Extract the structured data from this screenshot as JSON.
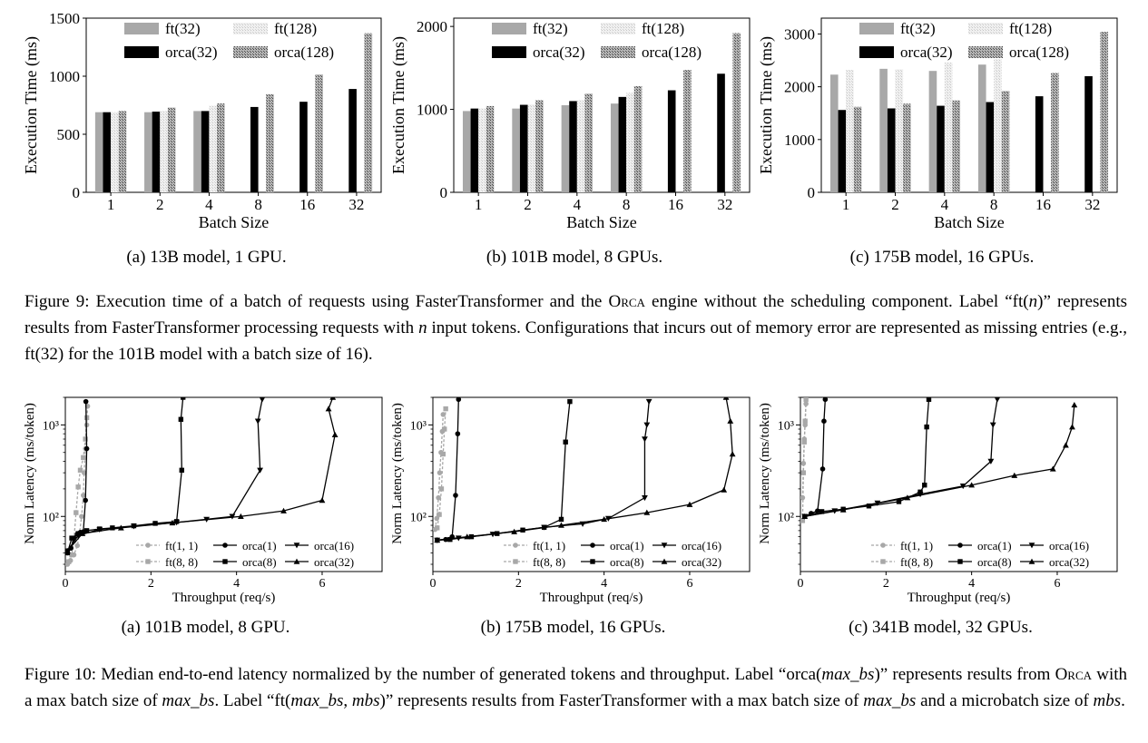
{
  "figure9": {
    "caption": {
      "s1": "Figure 9: Execution time of a batch of requests using FasterTransformer and the ",
      "orca": "Orca",
      "s2": " engine without the scheduling component. Label “ft(",
      "n": "n",
      "s3": ")” represents results from FasterTransformer processing requests with ",
      "n2": "n",
      "s4": " input tokens. Configurations that incurs out of memory error are represented as missing entries (e.g., ft(32) for the 101B model with a batch size of 16)."
    }
  },
  "figure10": {
    "caption": {
      "s1": "Figure 10: Median end-to-end latency normalized by the number of generated tokens and throughput. Label “orca(",
      "v1": "max_bs",
      "s2": ")” represents results from ",
      "orca": "Orca",
      "s3": " with a max batch size of ",
      "v2": "max_bs",
      "s4": ". Label “ft(",
      "v3": "max_bs",
      "s5": ", ",
      "v4": "mbs",
      "s6": ")” represents results from FasterTransformer with a max batch size of ",
      "v5": "max_bs",
      "s7": " and a microbatch size of ",
      "v6": "mbs",
      "s8": "."
    }
  },
  "colors": {
    "ft32": "#a8a8a8",
    "ft128": "#e2e2e2",
    "orca32": "#000000",
    "orca128": "#8c8c8c",
    "ft_line": "#a8a8a8",
    "orca_line": "#000000"
  },
  "chart_data": [
    {
      "type": "bar",
      "id": "fig9a",
      "subcaption": "(a) 13B model, 1 GPU.",
      "xlabel": "Batch Size",
      "ylabel": "Execution Time (ms)",
      "ylim": [
        0,
        1500
      ],
      "yticks": [
        0,
        500,
        1000,
        1500
      ],
      "categories": [
        "1",
        "2",
        "4",
        "8",
        "16",
        "32"
      ],
      "series": [
        {
          "name": "ft(32)",
          "key": "ft32",
          "values": [
            690,
            690,
            700,
            null,
            null,
            null
          ]
        },
        {
          "name": "orca(32)",
          "key": "orca32",
          "values": [
            690,
            695,
            700,
            735,
            780,
            890
          ]
        },
        {
          "name": "ft(128)",
          "key": "ft128",
          "values": [
            690,
            700,
            745,
            null,
            null,
            null
          ]
        },
        {
          "name": "orca(128)",
          "key": "orca128",
          "values": [
            700,
            730,
            765,
            845,
            1015,
            1370
          ]
        }
      ]
    },
    {
      "type": "bar",
      "id": "fig9b",
      "subcaption": "(b) 101B model, 8 GPUs.",
      "xlabel": "Batch Size",
      "ylabel": "Execution Time (ms)",
      "ylim": [
        0,
        2100
      ],
      "yticks": [
        0,
        1000,
        2000
      ],
      "categories": [
        "1",
        "2",
        "4",
        "8",
        "16",
        "32"
      ],
      "series": [
        {
          "name": "ft(32)",
          "key": "ft32",
          "values": [
            980,
            1010,
            1050,
            1070,
            null,
            null
          ]
        },
        {
          "name": "orca(32)",
          "key": "orca32",
          "values": [
            1010,
            1055,
            1100,
            1150,
            1230,
            1430
          ]
        },
        {
          "name": "ft(128)",
          "key": "ft128",
          "values": [
            1010,
            1060,
            1110,
            1200,
            null,
            null
          ]
        },
        {
          "name": "orca(128)",
          "key": "orca128",
          "values": [
            1040,
            1110,
            1190,
            1280,
            1475,
            1920
          ]
        }
      ]
    },
    {
      "type": "bar",
      "id": "fig9c",
      "subcaption": "(c) 175B model, 16 GPUs.",
      "xlabel": "Batch Size",
      "ylabel": "Execution Time (ms)",
      "ylim": [
        0,
        3300
      ],
      "yticks": [
        0,
        1000,
        2000,
        3000
      ],
      "categories": [
        "1",
        "2",
        "4",
        "8",
        "16",
        "32"
      ],
      "series": [
        {
          "name": "ft(32)",
          "key": "ft32",
          "values": [
            2230,
            2340,
            2300,
            2420,
            null,
            null
          ]
        },
        {
          "name": "orca(32)",
          "key": "orca32",
          "values": [
            1560,
            1590,
            1640,
            1710,
            1820,
            2200
          ]
        },
        {
          "name": "ft(128)",
          "key": "ft128",
          "values": [
            2320,
            2330,
            2460,
            2520,
            null,
            null
          ]
        },
        {
          "name": "orca(128)",
          "key": "orca128",
          "values": [
            1620,
            1680,
            1740,
            1920,
            2260,
            3040
          ]
        }
      ]
    },
    {
      "type": "line",
      "id": "fig10a",
      "subcaption": "(a) 101B model, 8 GPU.",
      "xlabel": "Throughput (req/s)",
      "ylabel": "Norm Latency (ms/token)",
      "yscale": "log",
      "xlim": [
        0,
        7.4
      ],
      "ylim": [
        25,
        2000
      ],
      "xticks": [
        0,
        2,
        4,
        6
      ],
      "yticks": [
        {
          "value": 100,
          "label": "10²"
        },
        {
          "value": 1000,
          "label": "10³"
        }
      ],
      "series": [
        {
          "name": "ft(1, 1)",
          "style": "ft",
          "marker": "circle",
          "points": [
            [
              0.05,
              30
            ],
            [
              0.12,
              33
            ],
            [
              0.2,
              38
            ],
            [
              0.28,
              48
            ],
            [
              0.33,
              65
            ],
            [
              0.38,
              100
            ],
            [
              0.42,
              170
            ],
            [
              0.44,
              300
            ],
            [
              0.47,
              550
            ],
            [
              0.5,
              1000
            ],
            [
              0.52,
              1600
            ]
          ]
        },
        {
          "name": "ft(8, 8)",
          "style": "ft",
          "marker": "square",
          "points": [
            [
              0.08,
              32
            ],
            [
              0.15,
              38
            ],
            [
              0.2,
              55
            ],
            [
              0.25,
              110
            ],
            [
              0.3,
              210
            ],
            [
              0.35,
              320
            ],
            [
              0.42,
              440
            ],
            [
              0.47,
              700
            ],
            [
              0.5,
              1200
            ]
          ]
        },
        {
          "name": "orca(1)",
          "style": "orca",
          "marker": "circle",
          "points": [
            [
              0.05,
              40
            ],
            [
              0.13,
              45
            ],
            [
              0.2,
              58
            ],
            [
              0.28,
              64
            ],
            [
              0.35,
              67
            ],
            [
              0.42,
              68
            ],
            [
              0.47,
              150
            ],
            [
              0.5,
              550
            ],
            [
              0.48,
              1800
            ]
          ]
        },
        {
          "name": "orca(8)",
          "style": "orca",
          "marker": "square",
          "points": [
            [
              0.05,
              40
            ],
            [
              0.15,
              58
            ],
            [
              0.3,
              65
            ],
            [
              0.5,
              70
            ],
            [
              0.8,
              73
            ],
            [
              1.1,
              75
            ],
            [
              1.6,
              79
            ],
            [
              2.1,
              84
            ],
            [
              2.6,
              88
            ],
            [
              2.72,
              320
            ],
            [
              2.7,
              1150
            ],
            [
              2.75,
              2000
            ]
          ]
        },
        {
          "name": "orca(16)",
          "style": "orca",
          "marker": "tri-down",
          "points": [
            [
              0.05,
              42
            ],
            [
              0.3,
              62
            ],
            [
              0.8,
              72
            ],
            [
              1.6,
              78
            ],
            [
              2.6,
              86
            ],
            [
              3.3,
              93
            ],
            [
              3.9,
              100
            ],
            [
              4.55,
              320
            ],
            [
              4.5,
              1100
            ],
            [
              4.6,
              1900
            ]
          ]
        },
        {
          "name": "orca(32)",
          "style": "orca",
          "marker": "tri-up",
          "points": [
            [
              0.05,
              42
            ],
            [
              0.4,
              65
            ],
            [
              1.3,
              75
            ],
            [
              2.5,
              85
            ],
            [
              4.1,
              100
            ],
            [
              5.1,
              115
            ],
            [
              6.0,
              150
            ],
            [
              6.3,
              780
            ],
            [
              6.15,
              1500
            ],
            [
              6.25,
              2000
            ]
          ]
        }
      ],
      "legend": "lower-right"
    },
    {
      "type": "line",
      "id": "fig10b",
      "subcaption": "(b) 175B model, 16 GPUs.",
      "xlabel": "Throughput (req/s)",
      "ylabel": "Norm Latency (ms/token)",
      "yscale": "log",
      "xlim": [
        0,
        7.4
      ],
      "ylim": [
        25,
        2000
      ],
      "xticks": [
        0,
        2,
        4,
        6
      ],
      "yticks": [
        {
          "value": 100,
          "label": "10²"
        },
        {
          "value": 1000,
          "label": "10³"
        }
      ],
      "series": [
        {
          "name": "ft(1, 1)",
          "style": "ft",
          "marker": "circle",
          "points": [
            [
              0.05,
              72
            ],
            [
              0.09,
              95
            ],
            [
              0.13,
              160
            ],
            [
              0.16,
              300
            ],
            [
              0.19,
              500
            ],
            [
              0.22,
              850
            ],
            [
              0.24,
              1300
            ]
          ]
        },
        {
          "name": "ft(8, 8)",
          "style": "ft",
          "marker": "square",
          "points": [
            [
              0.1,
              75
            ],
            [
              0.15,
              105
            ],
            [
              0.2,
              200
            ],
            [
              0.24,
              480
            ],
            [
              0.27,
              900
            ],
            [
              0.3,
              1500
            ]
          ]
        },
        {
          "name": "orca(1)",
          "style": "orca",
          "marker": "circle",
          "points": [
            [
              0.1,
              55
            ],
            [
              0.3,
              56
            ],
            [
              0.45,
              60
            ],
            [
              0.53,
              170
            ],
            [
              0.58,
              800
            ],
            [
              0.6,
              1900
            ]
          ]
        },
        {
          "name": "orca(8)",
          "style": "orca",
          "marker": "square",
          "points": [
            [
              0.1,
              55
            ],
            [
              0.4,
              56
            ],
            [
              0.9,
              60
            ],
            [
              1.5,
              65
            ],
            [
              2.1,
              71
            ],
            [
              2.6,
              76
            ],
            [
              3.0,
              93
            ],
            [
              3.1,
              650
            ],
            [
              3.2,
              1800
            ]
          ]
        },
        {
          "name": "orca(16)",
          "style": "orca",
          "marker": "tri-down",
          "points": [
            [
              0.1,
              55
            ],
            [
              0.6,
              58
            ],
            [
              1.4,
              64
            ],
            [
              2.6,
              76
            ],
            [
              3.5,
              83
            ],
            [
              4.1,
              95
            ],
            [
              4.95,
              160
            ],
            [
              4.95,
              700
            ],
            [
              5.0,
              1000
            ],
            [
              5.05,
              1800
            ]
          ]
        },
        {
          "name": "orca(32)",
          "style": "orca",
          "marker": "tri-up",
          "points": [
            [
              0.1,
              55
            ],
            [
              0.8,
              60
            ],
            [
              1.9,
              68
            ],
            [
              3.0,
              80
            ],
            [
              4.0,
              93
            ],
            [
              5.0,
              110
            ],
            [
              6.0,
              135
            ],
            [
              6.8,
              195
            ],
            [
              7.0,
              480
            ],
            [
              6.95,
              1100
            ],
            [
              6.85,
              2000
            ]
          ]
        }
      ],
      "legend": "lower-right"
    },
    {
      "type": "line",
      "id": "fig10c",
      "subcaption": "(c) 341B model, 32 GPUs.",
      "xlabel": "Throughput (req/s)",
      "ylabel": "Norm Latency (ms/token)",
      "yscale": "log",
      "xlim": [
        0,
        7.4
      ],
      "ylim": [
        25,
        2000
      ],
      "xticks": [
        0,
        2,
        4,
        6
      ],
      "yticks": [
        {
          "value": 100,
          "label": "10²"
        },
        {
          "value": 1000,
          "label": "10³"
        }
      ],
      "series": [
        {
          "name": "ft(1, 1)",
          "style": "ft",
          "marker": "circle",
          "points": [
            [
              0.05,
              160
            ],
            [
              0.07,
              380
            ],
            [
              0.09,
              700
            ],
            [
              0.11,
              1000
            ],
            [
              0.13,
              1700
            ]
          ]
        },
        {
          "name": "ft(8, 8)",
          "style": "ft",
          "marker": "square",
          "points": [
            [
              0.05,
              90
            ],
            [
              0.07,
              300
            ],
            [
              0.09,
              650
            ],
            [
              0.11,
              1100
            ],
            [
              0.13,
              1900
            ]
          ]
        },
        {
          "name": "orca(1)",
          "style": "orca",
          "marker": "circle",
          "points": [
            [
              0.1,
              100
            ],
            [
              0.25,
              108
            ],
            [
              0.4,
              115
            ],
            [
              0.52,
              330
            ],
            [
              0.55,
              1100
            ],
            [
              0.58,
              1900
            ]
          ]
        },
        {
          "name": "orca(8)",
          "style": "orca",
          "marker": "square",
          "points": [
            [
              0.1,
              100
            ],
            [
              0.5,
              113
            ],
            [
              1.0,
              120
            ],
            [
              1.6,
              130
            ],
            [
              2.3,
              145
            ],
            [
              2.8,
              185
            ],
            [
              2.9,
              220
            ],
            [
              2.95,
              950
            ],
            [
              3.0,
              1900
            ]
          ]
        },
        {
          "name": "orca(16)",
          "style": "orca",
          "marker": "tri-down",
          "points": [
            [
              0.1,
              100
            ],
            [
              0.8,
              115
            ],
            [
              1.8,
              140
            ],
            [
              2.8,
              175
            ],
            [
              3.8,
              215
            ],
            [
              4.45,
              400
            ],
            [
              4.5,
              1000
            ],
            [
              4.6,
              1900
            ]
          ]
        },
        {
          "name": "orca(32)",
          "style": "orca",
          "marker": "tri-up",
          "points": [
            [
              0.1,
              100
            ],
            [
              1.0,
              118
            ],
            [
              2.5,
              160
            ],
            [
              4.0,
              220
            ],
            [
              5.0,
              280
            ],
            [
              5.9,
              330
            ],
            [
              6.2,
              600
            ],
            [
              6.35,
              950
            ],
            [
              6.4,
              1650
            ]
          ]
        }
      ],
      "legend": "lower-right"
    }
  ]
}
